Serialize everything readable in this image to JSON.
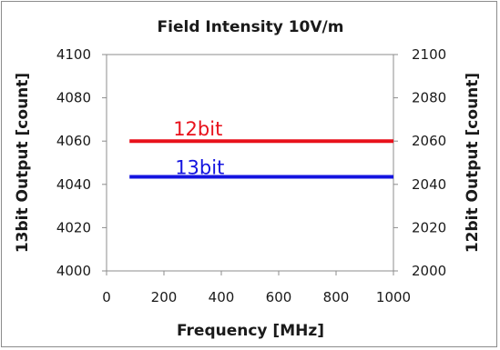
{
  "chart_data": {
    "type": "line",
    "title": "Field Intensity 10V/m",
    "xlabel": "Frequency [MHz]",
    "ylabel_left": "13bit Output [count]",
    "ylabel_right": "12bit Output [count]",
    "xlim": [
      0,
      1000
    ],
    "ylim_left": [
      4000,
      4100
    ],
    "ylim_right": [
      2000,
      2100
    ],
    "x_ticks": [
      0,
      200,
      400,
      600,
      800,
      1000
    ],
    "y_ticks_left": [
      4000,
      4020,
      4040,
      4060,
      4080,
      4100
    ],
    "y_ticks_right": [
      2000,
      2020,
      2040,
      2060,
      2080,
      2100
    ],
    "grid": false,
    "legend": "inline-labels",
    "series": [
      {
        "name": "12bit",
        "axis": "right",
        "color": "#e8111b",
        "x": [
          80,
          1000
        ],
        "y": [
          2060,
          2060
        ]
      },
      {
        "name": "13bit",
        "axis": "left",
        "color": "#1414e0",
        "x": [
          80,
          1000
        ],
        "y": [
          4043.5,
          4043.5
        ]
      }
    ]
  }
}
